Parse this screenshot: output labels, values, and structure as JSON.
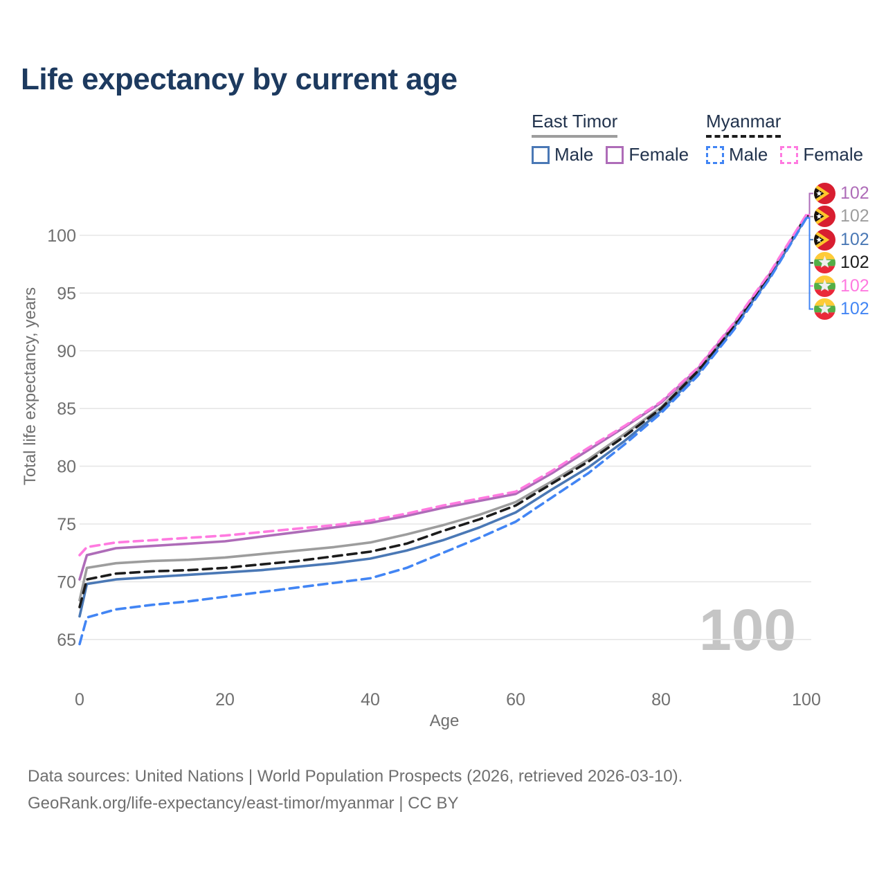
{
  "title": "Life expectancy by current age",
  "legend": {
    "groups": [
      {
        "name": "East Timor",
        "style": "solid",
        "male_label": "Male",
        "female_label": "Female"
      },
      {
        "name": "Myanmar",
        "style": "dashed",
        "male_label": "Male",
        "female_label": "Female"
      }
    ]
  },
  "age_watermark": "100",
  "footer": {
    "line1": "Data sources: United Nations | World Population Prospects (2026, retrieved 2026-03-10).",
    "line2": "GeoRank.org/life-expectancy/east-timor/myanmar | CC BY"
  },
  "chart_data": {
    "type": "line",
    "title": "Life expectancy by current age",
    "xlabel": "Age",
    "ylabel": "Total life expectancy, years",
    "xlim": [
      0,
      100
    ],
    "ylim": [
      64,
      102
    ],
    "x_ticks": [
      0,
      20,
      40,
      60,
      80,
      100
    ],
    "y_ticks": [
      65,
      70,
      75,
      80,
      85,
      90,
      95,
      100
    ],
    "grid": "horizontal",
    "legend_position": "top-right",
    "x": [
      0,
      1,
      5,
      10,
      15,
      20,
      25,
      30,
      35,
      40,
      45,
      50,
      55,
      60,
      65,
      70,
      75,
      80,
      85,
      90,
      95,
      100
    ],
    "series": [
      {
        "name": "East Timor Female",
        "country": "East Timor",
        "sex": "Female",
        "color": "#ae6cb8",
        "dash": false,
        "end_label": "102",
        "values": [
          70.2,
          72.3,
          72.9,
          73.1,
          73.3,
          73.5,
          73.9,
          74.3,
          74.7,
          75.1,
          75.7,
          76.4,
          77.0,
          77.6,
          79.4,
          81.4,
          83.4,
          85.5,
          88.4,
          92.3,
          96.7,
          101.7
        ]
      },
      {
        "name": "East Timor",
        "country": "East Timor",
        "sex": "Total",
        "color": "#9d9d9d",
        "dash": false,
        "end_label": "102",
        "values": [
          68.4,
          71.2,
          71.6,
          71.8,
          71.9,
          72.1,
          72.4,
          72.7,
          73.0,
          73.4,
          74.1,
          74.9,
          75.8,
          76.9,
          78.7,
          80.6,
          82.8,
          85.1,
          88.2,
          92.1,
          96.5,
          101.7
        ]
      },
      {
        "name": "East Timor Male",
        "country": "East Timor",
        "sex": "Male",
        "color": "#4a78b5",
        "dash": false,
        "end_label": "102",
        "values": [
          67.0,
          69.8,
          70.2,
          70.4,
          70.6,
          70.8,
          71.0,
          71.3,
          71.6,
          72.0,
          72.7,
          73.6,
          74.7,
          76.0,
          78.0,
          79.9,
          82.2,
          84.8,
          88.0,
          92.0,
          96.4,
          101.6
        ]
      },
      {
        "name": "Myanmar",
        "country": "Myanmar",
        "sex": "Total",
        "color": "#1c1c1c",
        "dash": true,
        "end_label": "102",
        "values": [
          67.8,
          70.2,
          70.7,
          70.9,
          71.0,
          71.2,
          71.5,
          71.8,
          72.2,
          72.6,
          73.3,
          74.4,
          75.4,
          76.6,
          78.5,
          80.4,
          82.6,
          85.0,
          88.2,
          92.1,
          96.5,
          101.7
        ]
      },
      {
        "name": "Myanmar Female",
        "country": "Myanmar",
        "sex": "Female",
        "color": "#ff7ae0",
        "dash": true,
        "end_label": "102",
        "values": [
          72.3,
          73.0,
          73.4,
          73.6,
          73.8,
          74.0,
          74.3,
          74.6,
          74.9,
          75.3,
          75.9,
          76.6,
          77.2,
          77.8,
          79.6,
          81.6,
          83.5,
          85.6,
          88.5,
          92.4,
          96.8,
          101.8
        ]
      },
      {
        "name": "Myanmar Male",
        "country": "Myanmar",
        "sex": "Male",
        "color": "#4285f4",
        "dash": true,
        "end_label": "102",
        "values": [
          64.6,
          66.9,
          67.6,
          68.0,
          68.3,
          68.7,
          69.1,
          69.5,
          69.9,
          70.3,
          71.2,
          72.5,
          73.8,
          75.2,
          77.3,
          79.4,
          81.9,
          84.6,
          87.8,
          91.8,
          96.3,
          101.5
        ]
      }
    ]
  }
}
